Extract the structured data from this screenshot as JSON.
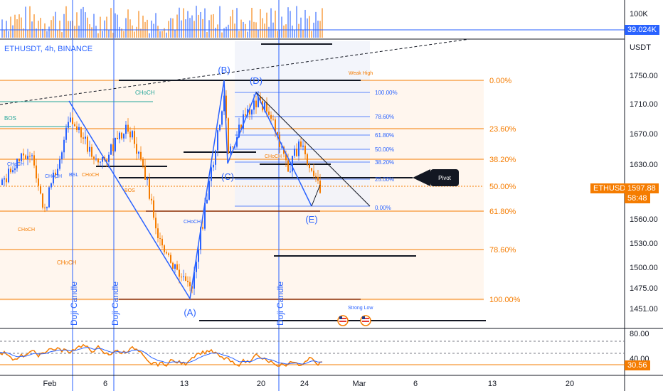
{
  "symbol": {
    "title": "ETHUSDT, 4h, BINANCE"
  },
  "volume_axis": {
    "tick": "100K",
    "current": "39.024K"
  },
  "price_axis": {
    "currency": "USDT",
    "ticks": [
      "1750.00",
      "1710.00",
      "1670.00",
      "1630.00",
      "1560.00",
      "1530.00",
      "1500.00",
      "1475.00",
      "1451.00"
    ],
    "symbol_badge": "ETHUSDT",
    "current_price": "1597.88",
    "countdown": "58:48"
  },
  "fib_right": [
    "0.00%",
    "23.60%",
    "38.20%",
    "50.00%",
    "61.80%",
    "78.60%",
    "100.00%"
  ],
  "fib_inner": [
    "100.00%",
    "78.60%",
    "61.80%",
    "50.00%",
    "38.20%",
    "25.00%",
    "0.00%"
  ],
  "waves": [
    "(A)",
    "(B)",
    "(C)",
    "(D)",
    "(E)"
  ],
  "labels": {
    "weak_high": "Weak High",
    "strong_low": "Strong Low",
    "bos": "BOS",
    "bos_small": "BOS",
    "choch": "CHoCH",
    "choch_small": "CHoCH",
    "bsl": "BSL",
    "pivot": "Pivot",
    "doji": "Doji Candle"
  },
  "rsi_axis": {
    "ticks": [
      "80.00",
      "40.00"
    ],
    "current": "30.56"
  },
  "time_axis": [
    "Feb",
    "6",
    "13",
    "20",
    "24",
    "Mar",
    "6",
    "13",
    "20"
  ],
  "colors": {
    "fib": "#f57c00",
    "wave": "#2962ff",
    "up": "#2962ff",
    "down": "#f57c00",
    "rsi": "#f57c00",
    "rsi_ma": "#2962ff"
  }
}
